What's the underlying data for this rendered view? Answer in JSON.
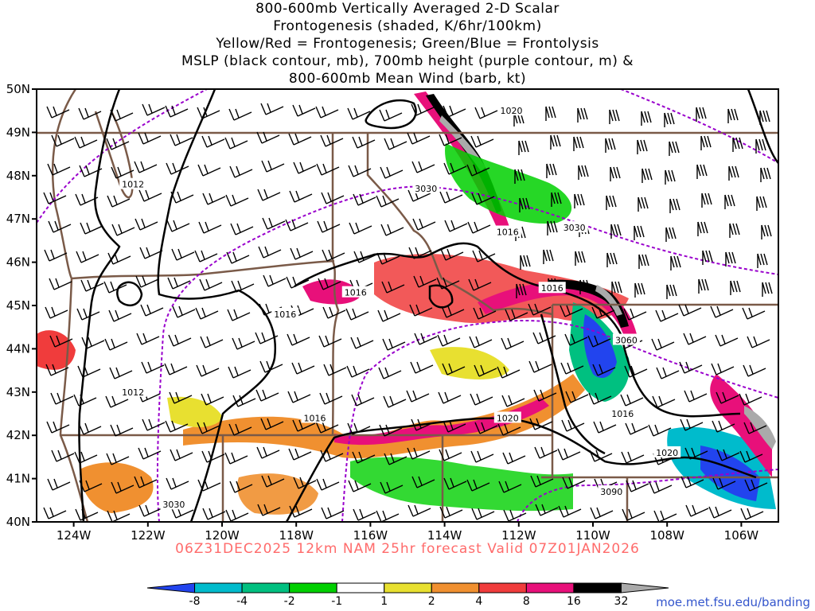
{
  "title_lines": [
    "800-600mb Vertically Averaged 2-D Scalar",
    "Frontogenesis (shaded, K/6hr/100km)",
    "Yellow/Red = Frontogenesis;  Green/Blue = Frontolysis",
    "MSLP (black contour, mb), 700mb height (purple contour, m) &",
    "800-600mb Mean Wind (barb, kt)"
  ],
  "valid_line": "06Z31DEC2025 12km NAM 25hr forecast Valid 07Z01JAN2026",
  "credit": "moe.met.fsu.edu/banding",
  "map": {
    "lon_min": -125,
    "lon_max": -105,
    "lat_min": 40,
    "lat_max": 50,
    "lat_labels": [
      "40N",
      "41N",
      "42N",
      "43N",
      "44N",
      "45N",
      "46N",
      "47N",
      "48N",
      "49N",
      "50N"
    ],
    "lon_labels": [
      "124W",
      "122W",
      "120W",
      "118W",
      "116W",
      "114W",
      "112W",
      "110W",
      "108W",
      "106W"
    ],
    "lon_label_values": [
      -124,
      -122,
      -120,
      -118,
      -116,
      -114,
      -112,
      -110,
      -108,
      -106
    ],
    "mslp_labels": [
      {
        "text": "1020",
        "lon": -112.2,
        "lat": 49.5
      },
      {
        "text": "1012",
        "lon": -122.4,
        "lat": 47.8
      },
      {
        "text": "1016",
        "lon": -112.3,
        "lat": 46.7
      },
      {
        "text": "1016",
        "lon": -118.3,
        "lat": 44.8
      },
      {
        "text": "1016",
        "lon": -116.4,
        "lat": 45.3
      },
      {
        "text": "1016",
        "lon": -111.1,
        "lat": 45.4
      },
      {
        "text": "1012",
        "lon": -122.4,
        "lat": 43.0
      },
      {
        "text": "1016",
        "lon": -117.5,
        "lat": 42.4
      },
      {
        "text": "1020",
        "lon": -112.3,
        "lat": 42.4
      },
      {
        "text": "1016",
        "lon": -109.2,
        "lat": 42.5
      },
      {
        "text": "1020",
        "lon": -108.0,
        "lat": 41.6
      }
    ],
    "height_labels": [
      {
        "text": "3030",
        "lon": -114.5,
        "lat": 47.7
      },
      {
        "text": "3030",
        "lon": -110.5,
        "lat": 46.8
      },
      {
        "text": "3060",
        "lon": -109.1,
        "lat": 44.2
      },
      {
        "text": "3090",
        "lon": -109.5,
        "lat": 40.7
      },
      {
        "text": "3030",
        "lon": -121.3,
        "lat": 40.4
      }
    ],
    "colors": {
      "mslp": "#000000",
      "height": "#9900cc",
      "borders": "#7a5a48",
      "fronto_pos": [
        "#e8e030",
        "#f09030",
        "#f03c3c",
        "#e8107a",
        "#000000",
        "#aaaaaa"
      ],
      "fronto_neg": [
        "#00d000",
        "#00c080",
        "#00bbcc",
        "#2244ee"
      ]
    }
  },
  "colorbar": {
    "labels": [
      "-8",
      "-4",
      "-2",
      "-1",
      "1",
      "2",
      "4",
      "8",
      "16",
      "32"
    ],
    "colors": [
      "#2244ee",
      "#00bbcc",
      "#00c080",
      "#00d000",
      "#ffffff",
      "#e8e030",
      "#f09030",
      "#f03c3c",
      "#e8107a",
      "#000000",
      "#aaaaaa"
    ]
  }
}
